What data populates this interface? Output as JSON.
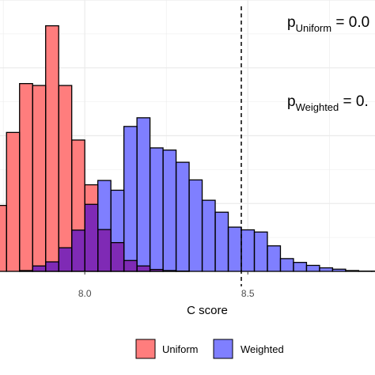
{
  "chart_data": {
    "type": "bar",
    "subtype": "overlapping-histogram",
    "xlabel": "C score",
    "ylabel": "",
    "xlim": [
      7.74,
      8.89
    ],
    "ylim": [
      0,
      1000
    ],
    "bin_width": 0.04,
    "x_ticks": [
      {
        "value": 8.0,
        "label": "8.0"
      },
      {
        "value": 8.5,
        "label": "8.5"
      }
    ],
    "grid": true,
    "bin_starts": [
      7.72,
      7.76,
      7.8,
      7.84,
      7.88,
      7.92,
      7.96,
      8.0,
      8.04,
      8.08,
      8.12,
      8.16,
      8.2,
      8.24,
      8.28,
      8.32,
      8.36,
      8.4,
      8.44,
      8.48,
      8.52,
      8.56,
      8.6,
      8.64,
      8.68,
      8.72,
      8.76,
      8.8,
      8.84,
      8.88
    ],
    "series": [
      {
        "name": "Uniform",
        "color": "#F8766D",
        "fill": "#FF0000",
        "values": [
          243,
          512,
          692,
          685,
          905,
          685,
          484,
          319,
          154,
          106,
          40,
          20,
          7,
          3,
          1,
          0,
          0,
          0,
          0,
          0,
          0,
          0,
          0,
          0,
          0,
          0,
          0,
          0,
          0,
          0
        ]
      },
      {
        "name": "Weighted",
        "color": "#7B7BFF",
        "fill": "#0000FF",
        "values": [
          0,
          0,
          3,
          20,
          35,
          87,
          152,
          247,
          335,
          299,
          534,
          566,
          455,
          447,
          402,
          337,
          262,
          218,
          163,
          153,
          145,
          94,
          47,
          33,
          22,
          13,
          8,
          3,
          1,
          1
        ]
      }
    ],
    "overlap_color": "#7F2AB5",
    "reference_line": {
      "x": 8.48,
      "style": "dashed"
    },
    "annotations": [
      {
        "prefix": "p",
        "subscript": "Uniform",
        "suffix": " = 0.0"
      },
      {
        "prefix": "p",
        "subscript": "Weighted",
        "suffix": " = 0."
      }
    ],
    "legend": {
      "placement": "bottom",
      "entries": [
        {
          "label": "Uniform",
          "color": "#F8766D"
        },
        {
          "label": "Weighted",
          "color": "#7B7BFF"
        }
      ]
    }
  }
}
